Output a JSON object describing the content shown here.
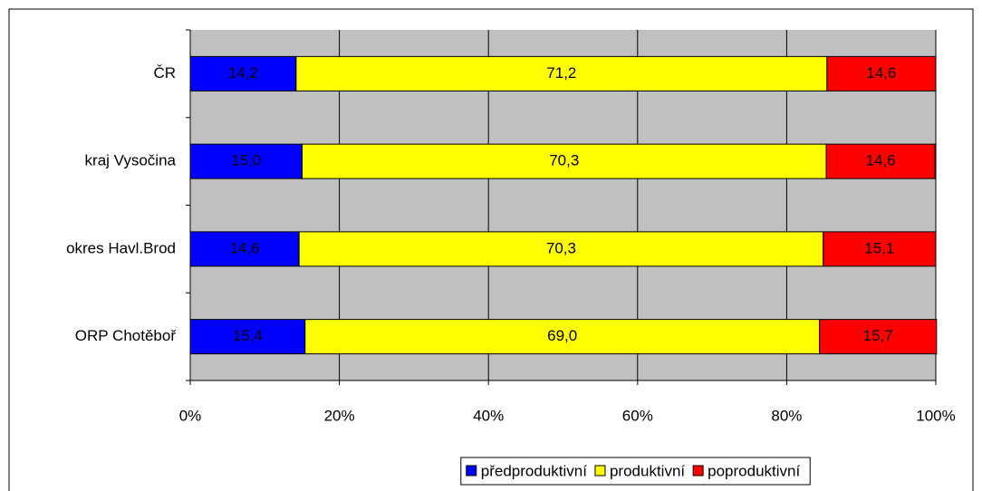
{
  "chart_data": {
    "type": "bar",
    "orientation": "horizontal",
    "stacked": true,
    "categories": [
      "ČR",
      "kraj Vysočina",
      "okres Havl.Brod",
      "ORP Chotěboř"
    ],
    "series": [
      {
        "name": "předproduktivní",
        "color": "#0000ff",
        "values": [
          14.2,
          15.0,
          14.6,
          15.4
        ],
        "value_labels": [
          "14,2",
          "15,0",
          "14,6",
          "15,4"
        ]
      },
      {
        "name": "produktivní",
        "color": "#ffff00",
        "values": [
          71.2,
          70.3,
          70.3,
          69.0
        ],
        "value_labels": [
          "71,2",
          "70,3",
          "70,3",
          "69,0"
        ]
      },
      {
        "name": "poproduktivní",
        "color": "#ff0000",
        "values": [
          14.6,
          14.6,
          15.1,
          15.7
        ],
        "value_labels": [
          "14,6",
          "14,6",
          "15,1",
          "15,7"
        ]
      }
    ],
    "xlim": [
      0,
      100
    ],
    "xticks": [
      {
        "value": 0,
        "label": "0%"
      },
      {
        "value": 20,
        "label": "20%"
      },
      {
        "value": 40,
        "label": "40%"
      },
      {
        "value": 60,
        "label": "60%"
      },
      {
        "value": 80,
        "label": "80%"
      },
      {
        "value": 100,
        "label": "100%"
      }
    ],
    "grid": true,
    "legend": "bottom"
  }
}
